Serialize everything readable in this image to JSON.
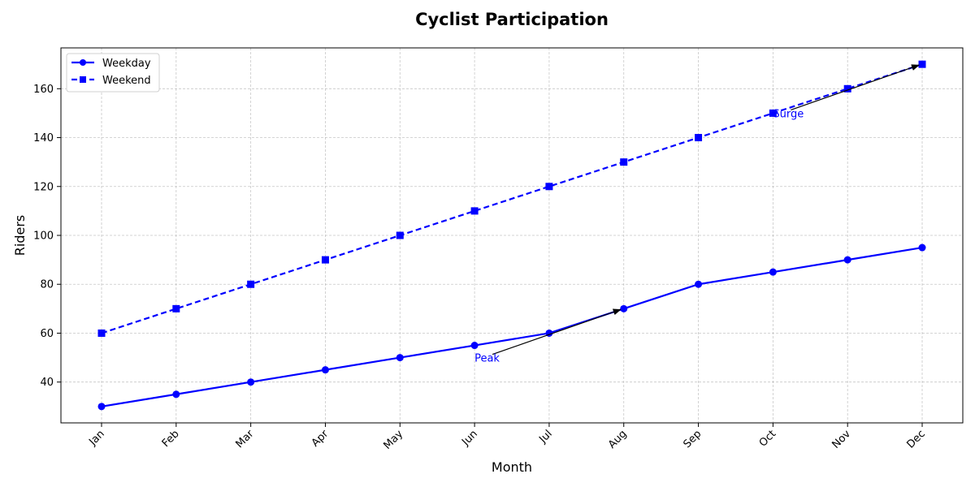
{
  "chart_data": {
    "type": "line",
    "title": "Cyclist Participation",
    "xlabel": "Month",
    "ylabel": "Riders",
    "categories": [
      "Jan",
      "Feb",
      "Mar",
      "Apr",
      "May",
      "Jun",
      "Jul",
      "Aug",
      "Sep",
      "Oct",
      "Nov",
      "Dec"
    ],
    "ylim": [
      23.3,
      176.7
    ],
    "yticks": [
      40,
      60,
      80,
      100,
      120,
      140,
      160
    ],
    "grid": true,
    "legend_position": "top-left",
    "series": [
      {
        "name": "Weekday",
        "values": [
          30,
          35,
          40,
          45,
          50,
          55,
          60,
          70,
          80,
          85,
          90,
          95
        ],
        "color": "#0000ff",
        "linestyle": "solid",
        "marker": "circle"
      },
      {
        "name": "Weekend",
        "values": [
          60,
          70,
          80,
          90,
          100,
          110,
          120,
          130,
          140,
          150,
          160,
          170
        ],
        "color": "#0000ff",
        "linestyle": "dashed",
        "marker": "square"
      }
    ],
    "annotations": [
      {
        "text": "Peak",
        "text_at": [
          "Jun",
          50
        ],
        "arrow_to": [
          "Aug",
          70
        ],
        "color": "#0000ff"
      },
      {
        "text": "Surge",
        "text_at": [
          "Oct",
          150
        ],
        "arrow_to": [
          "Dec",
          170
        ],
        "color": "#0000ff"
      }
    ]
  }
}
